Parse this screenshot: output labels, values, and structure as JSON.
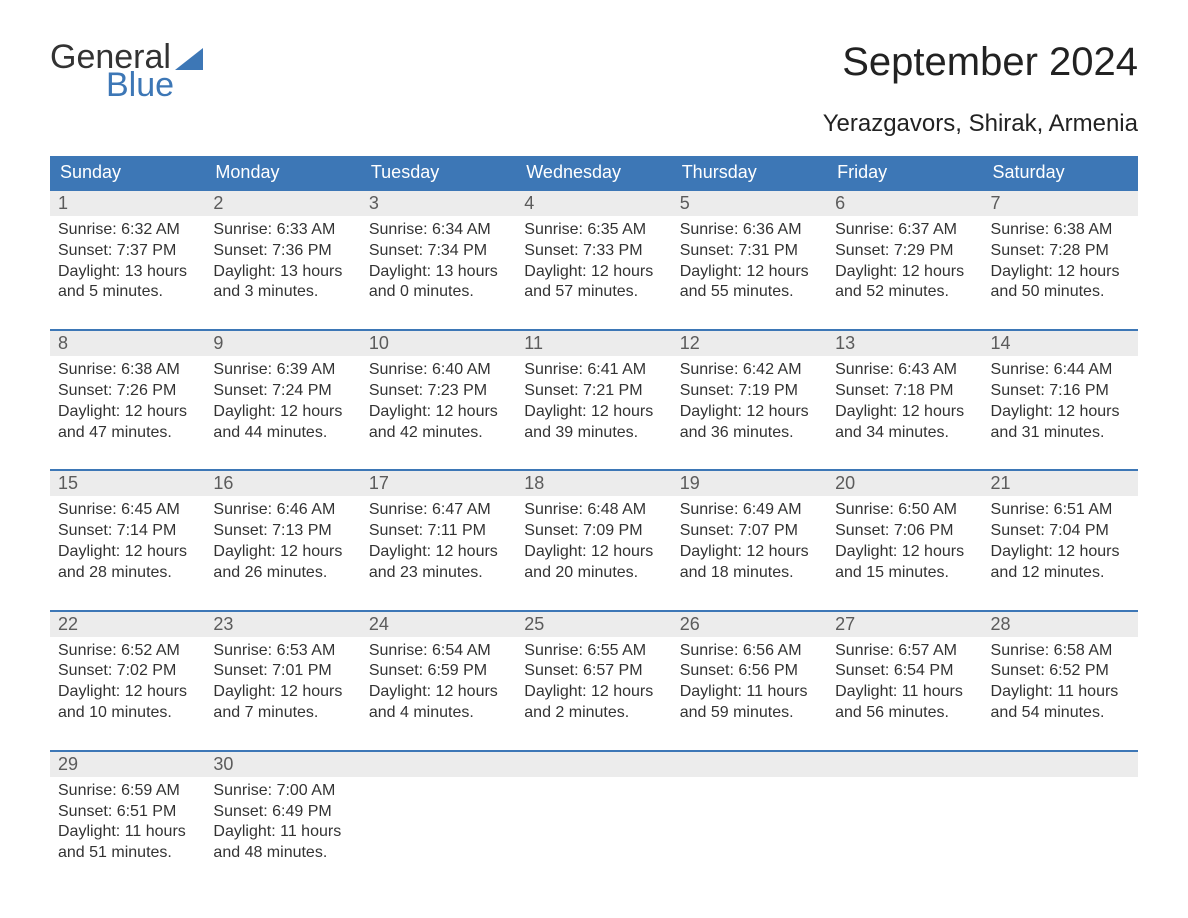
{
  "logo": {
    "text1": "General",
    "text2": "Blue",
    "flag_color": "#3d77b6"
  },
  "title": "September 2024",
  "subtitle": "Yerazgavors, Shirak, Armenia",
  "colors": {
    "header_bg": "#3d77b6",
    "header_text": "#ffffff",
    "daynum_bg": "#ececec",
    "daynum_text": "#5b5b5b",
    "body_text": "#333333",
    "week_border": "#3d77b6",
    "page_bg": "#ffffff"
  },
  "typography": {
    "title_fontsize": 40,
    "subtitle_fontsize": 24,
    "dayheader_fontsize": 18,
    "daynum_fontsize": 18,
    "info_fontsize": 16
  },
  "day_headers": [
    "Sunday",
    "Monday",
    "Tuesday",
    "Wednesday",
    "Thursday",
    "Friday",
    "Saturday"
  ],
  "weeks": [
    [
      {
        "day": "1",
        "sunrise": "6:32 AM",
        "sunset": "7:37 PM",
        "daylight": "13 hours and 5 minutes."
      },
      {
        "day": "2",
        "sunrise": "6:33 AM",
        "sunset": "7:36 PM",
        "daylight": "13 hours and 3 minutes."
      },
      {
        "day": "3",
        "sunrise": "6:34 AM",
        "sunset": "7:34 PM",
        "daylight": "13 hours and 0 minutes."
      },
      {
        "day": "4",
        "sunrise": "6:35 AM",
        "sunset": "7:33 PM",
        "daylight": "12 hours and 57 minutes."
      },
      {
        "day": "5",
        "sunrise": "6:36 AM",
        "sunset": "7:31 PM",
        "daylight": "12 hours and 55 minutes."
      },
      {
        "day": "6",
        "sunrise": "6:37 AM",
        "sunset": "7:29 PM",
        "daylight": "12 hours and 52 minutes."
      },
      {
        "day": "7",
        "sunrise": "6:38 AM",
        "sunset": "7:28 PM",
        "daylight": "12 hours and 50 minutes."
      }
    ],
    [
      {
        "day": "8",
        "sunrise": "6:38 AM",
        "sunset": "7:26 PM",
        "daylight": "12 hours and 47 minutes."
      },
      {
        "day": "9",
        "sunrise": "6:39 AM",
        "sunset": "7:24 PM",
        "daylight": "12 hours and 44 minutes."
      },
      {
        "day": "10",
        "sunrise": "6:40 AM",
        "sunset": "7:23 PM",
        "daylight": "12 hours and 42 minutes."
      },
      {
        "day": "11",
        "sunrise": "6:41 AM",
        "sunset": "7:21 PM",
        "daylight": "12 hours and 39 minutes."
      },
      {
        "day": "12",
        "sunrise": "6:42 AM",
        "sunset": "7:19 PM",
        "daylight": "12 hours and 36 minutes."
      },
      {
        "day": "13",
        "sunrise": "6:43 AM",
        "sunset": "7:18 PM",
        "daylight": "12 hours and 34 minutes."
      },
      {
        "day": "14",
        "sunrise": "6:44 AM",
        "sunset": "7:16 PM",
        "daylight": "12 hours and 31 minutes."
      }
    ],
    [
      {
        "day": "15",
        "sunrise": "6:45 AM",
        "sunset": "7:14 PM",
        "daylight": "12 hours and 28 minutes."
      },
      {
        "day": "16",
        "sunrise": "6:46 AM",
        "sunset": "7:13 PM",
        "daylight": "12 hours and 26 minutes."
      },
      {
        "day": "17",
        "sunrise": "6:47 AM",
        "sunset": "7:11 PM",
        "daylight": "12 hours and 23 minutes."
      },
      {
        "day": "18",
        "sunrise": "6:48 AM",
        "sunset": "7:09 PM",
        "daylight": "12 hours and 20 minutes."
      },
      {
        "day": "19",
        "sunrise": "6:49 AM",
        "sunset": "7:07 PM",
        "daylight": "12 hours and 18 minutes."
      },
      {
        "day": "20",
        "sunrise": "6:50 AM",
        "sunset": "7:06 PM",
        "daylight": "12 hours and 15 minutes."
      },
      {
        "day": "21",
        "sunrise": "6:51 AM",
        "sunset": "7:04 PM",
        "daylight": "12 hours and 12 minutes."
      }
    ],
    [
      {
        "day": "22",
        "sunrise": "6:52 AM",
        "sunset": "7:02 PM",
        "daylight": "12 hours and 10 minutes."
      },
      {
        "day": "23",
        "sunrise": "6:53 AM",
        "sunset": "7:01 PM",
        "daylight": "12 hours and 7 minutes."
      },
      {
        "day": "24",
        "sunrise": "6:54 AM",
        "sunset": "6:59 PM",
        "daylight": "12 hours and 4 minutes."
      },
      {
        "day": "25",
        "sunrise": "6:55 AM",
        "sunset": "6:57 PM",
        "daylight": "12 hours and 2 minutes."
      },
      {
        "day": "26",
        "sunrise": "6:56 AM",
        "sunset": "6:56 PM",
        "daylight": "11 hours and 59 minutes."
      },
      {
        "day": "27",
        "sunrise": "6:57 AM",
        "sunset": "6:54 PM",
        "daylight": "11 hours and 56 minutes."
      },
      {
        "day": "28",
        "sunrise": "6:58 AM",
        "sunset": "6:52 PM",
        "daylight": "11 hours and 54 minutes."
      }
    ],
    [
      {
        "day": "29",
        "sunrise": "6:59 AM",
        "sunset": "6:51 PM",
        "daylight": "11 hours and 51 minutes."
      },
      {
        "day": "30",
        "sunrise": "7:00 AM",
        "sunset": "6:49 PM",
        "daylight": "11 hours and 48 minutes."
      },
      {
        "empty": true
      },
      {
        "empty": true
      },
      {
        "empty": true
      },
      {
        "empty": true
      },
      {
        "empty": true
      }
    ]
  ],
  "labels": {
    "sunrise": "Sunrise: ",
    "sunset": "Sunset: ",
    "daylight": "Daylight: "
  }
}
